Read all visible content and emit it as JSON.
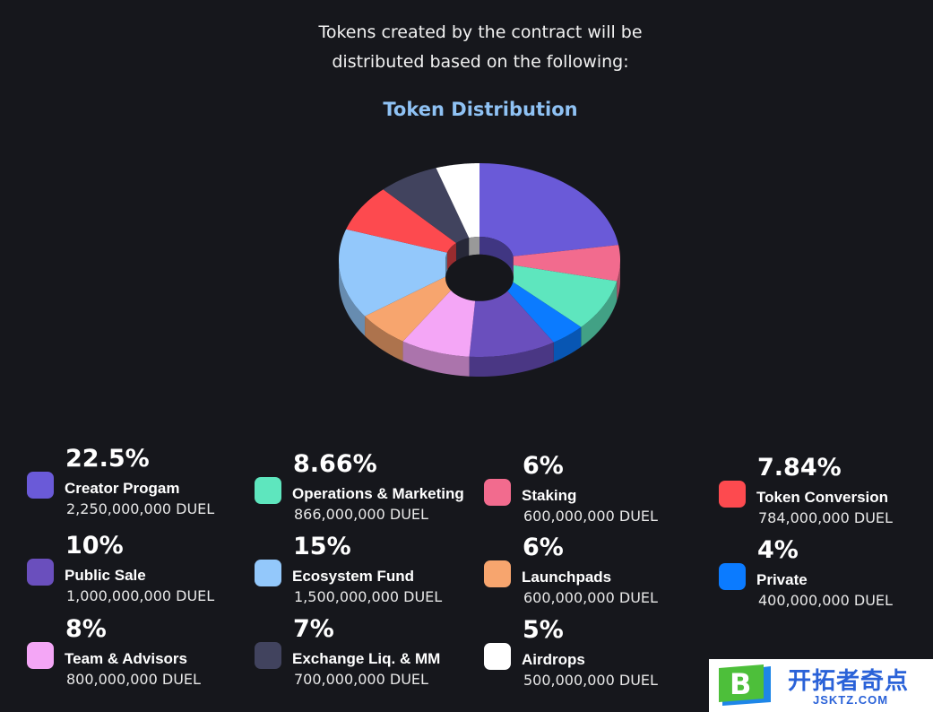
{
  "intro": {
    "line1": "Tokens created by the contract will be",
    "line2": "distributed based on the following:"
  },
  "chart_data": {
    "type": "pie",
    "title": "Token Distribution",
    "series": [
      {
        "name": "Creator Progam",
        "value": 22.5,
        "label": "22.5%",
        "amount": "2,250,000,000 DUEL",
        "color": "#6a5ad8"
      },
      {
        "name": "Staking",
        "value": 6,
        "label": "6%",
        "amount": "600,000,000 DUEL",
        "color": "#f26b8e"
      },
      {
        "name": "Operations & Marketing",
        "value": 8.66,
        "label": "8.66%",
        "amount": "866,000,000 DUEL",
        "color": "#5ee6be"
      },
      {
        "name": "Private",
        "value": 4,
        "label": "4%",
        "amount": "400,000,000 DUEL",
        "color": "#0b7bff"
      },
      {
        "name": "Public Sale",
        "value": 10,
        "label": "10%",
        "amount": "1,000,000,000 DUEL",
        "color": "#6a4fbd"
      },
      {
        "name": "Team & Advisors",
        "value": 8,
        "label": "8%",
        "amount": "800,000,000 DUEL",
        "color": "#f4a6f6"
      },
      {
        "name": "Launchpads",
        "value": 6,
        "label": "6%",
        "amount": "600,000,000 DUEL",
        "color": "#f7a56e"
      },
      {
        "name": "Ecosystem Fund",
        "value": 15,
        "label": "15%",
        "amount": "1,500,000,000 DUEL",
        "color": "#93c8fb"
      },
      {
        "name": "Token Conversion",
        "value": 7.84,
        "label": "7.84%",
        "amount": "784,000,000 DUEL",
        "color": "#fd4a4f"
      },
      {
        "name": "Exchange Liq. & MM",
        "value": 7,
        "label": "7%",
        "amount": "700,000,000 DUEL",
        "color": "#41435e"
      },
      {
        "name": "Airdrops",
        "value": 5,
        "label": "5%",
        "amount": "500,000,000 DUEL",
        "color": "#ffffff"
      }
    ]
  },
  "legend": [
    {
      "pct": "22.5%",
      "name": "Creator Progam",
      "amount": "2,250,000,000 DUEL",
      "color": "#6a5ad8"
    },
    {
      "pct": "8.66%",
      "name": "Operations & Marketing",
      "amount": "866,000,000 DUEL",
      "color": "#5ee6be"
    },
    {
      "pct": "6%",
      "name": "Staking",
      "amount": "600,000,000 DUEL",
      "color": "#f26b8e"
    },
    {
      "pct": "7.84%",
      "name": "Token Conversion",
      "amount": "784,000,000 DUEL",
      "color": "#fd4a4f"
    },
    {
      "pct": "10%",
      "name": "Public Sale",
      "amount": "1,000,000,000 DUEL",
      "color": "#6a4fbd"
    },
    {
      "pct": "15%",
      "name": "Ecosystem Fund",
      "amount": "1,500,000,000 DUEL",
      "color": "#93c8fb"
    },
    {
      "pct": "6%",
      "name": "Launchpads",
      "amount": "600,000,000 DUEL",
      "color": "#f7a56e"
    },
    {
      "pct": "4%",
      "name": "Private",
      "amount": "400,000,000 DUEL",
      "color": "#0b7bff"
    },
    {
      "pct": "8%",
      "name": "Team & Advisors",
      "amount": "800,000,000 DUEL",
      "color": "#f4a6f6"
    },
    {
      "pct": "7%",
      "name": "Exchange Liq. & MM",
      "amount": "700,000,000 DUEL",
      "color": "#41435e"
    },
    {
      "pct": "5%",
      "name": "Airdrops",
      "amount": "500,000,000 DUEL",
      "color": "#ffffff"
    }
  ],
  "watermark": {
    "logo_letter": "B",
    "text_cn": "开拓者奇点",
    "text_en": "JSKTZ.COM"
  }
}
